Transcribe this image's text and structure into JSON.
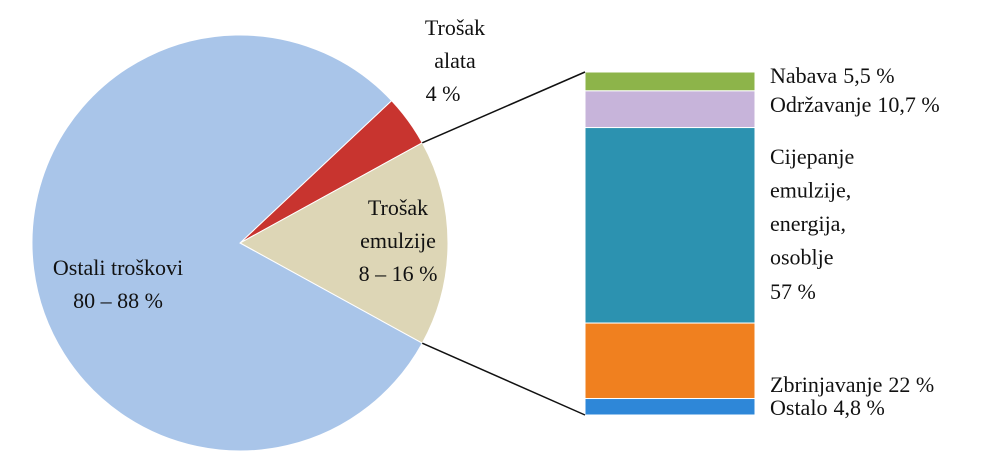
{
  "chart_data": [
    {
      "type": "pie",
      "categories": [
        [
          "Trošak",
          "alata"
        ],
        [
          "Trošak",
          "emulzije"
        ],
        [
          "Ostali troškovi"
        ]
      ],
      "values": [
        4,
        16,
        80
      ],
      "value_labels": [
        "4 %",
        "8 – 16 %",
        "80 – 88 %"
      ],
      "colors": [
        "#c8342f",
        "#ddd6b6",
        "#a9c5e9"
      ]
    },
    {
      "type": "bar",
      "stacked": true,
      "categories": [
        [
          "Nabava"
        ],
        [
          "Održavanje"
        ],
        [
          "Cijepanje",
          "emulzije,",
          "energija,",
          "osoblje"
        ],
        [
          "Zbrinjavanje"
        ],
        [
          "Ostalo"
        ]
      ],
      "values": [
        5.5,
        10.7,
        57,
        22,
        4.8
      ],
      "value_labels": [
        "5,5 %",
        "10,7 %",
        "57 %",
        "22 %",
        "4,8 %"
      ],
      "colors": [
        "#8db44a",
        "#c7b4da",
        "#2c92b0",
        "#f0801f",
        "#2e87d8"
      ]
    }
  ]
}
